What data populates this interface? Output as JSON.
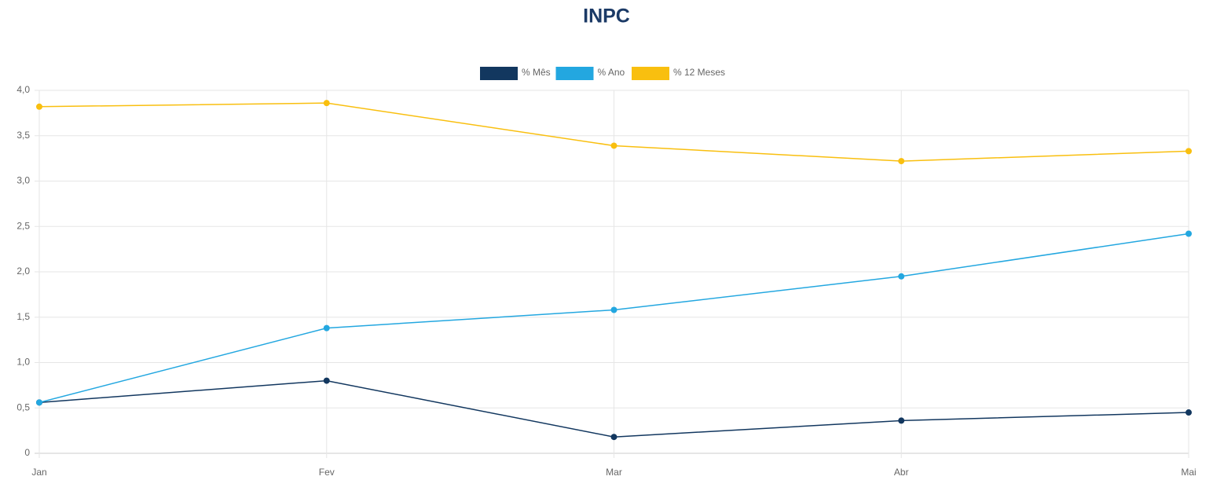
{
  "chart_data": {
    "type": "line",
    "title": "INPC",
    "categories": [
      "Jan",
      "Fev",
      "Mar",
      "Abr",
      "Mai"
    ],
    "series": [
      {
        "name": "% Mês",
        "color": "#12375f",
        "values": [
          0.56,
          0.8,
          0.18,
          0.36,
          0.45
        ]
      },
      {
        "name": "% Ano",
        "color": "#23a7e0",
        "values": [
          0.56,
          1.38,
          1.58,
          1.95,
          2.42
        ]
      },
      {
        "name": "% 12 Meses",
        "color": "#f9bf0f",
        "values": [
          3.82,
          3.86,
          3.39,
          3.22,
          3.33
        ]
      }
    ],
    "ylim": [
      0,
      4
    ],
    "yticks": [
      0,
      {
        "value": 0.5,
        "label": "0,5"
      },
      {
        "value": 1,
        "label": "1,0"
      },
      {
        "value": 1.5,
        "label": "1,5"
      },
      {
        "value": 2,
        "label": "2,0"
      },
      {
        "value": 2.5,
        "label": "2,5"
      },
      {
        "value": 3,
        "label": "3,0"
      },
      {
        "value": 3.5,
        "label": "3,5"
      },
      {
        "value": 4,
        "label": "4,0"
      }
    ],
    "grid": true,
    "legend": "top"
  }
}
